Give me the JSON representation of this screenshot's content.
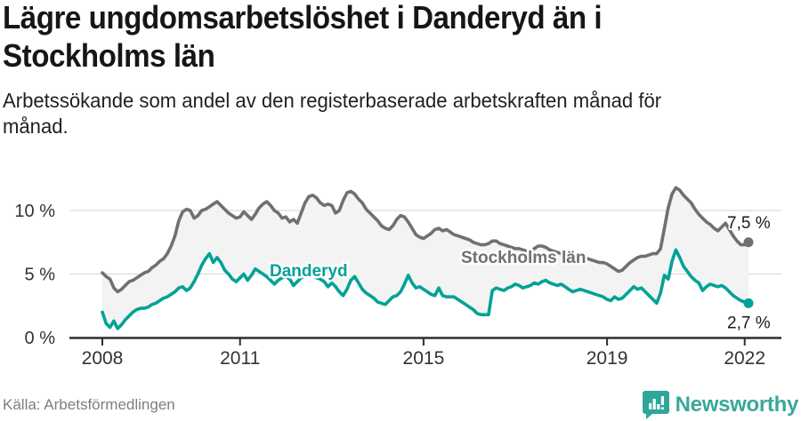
{
  "header": {
    "title": "Lägre ungdomsarbetslöshet i Danderyd än i\nStockholms län",
    "subtitle": "Arbetssökande som andel av den registerbaserade arbetskraften månad för\nmånad."
  },
  "footer": {
    "source": "Källa: Arbetsförmedlingen",
    "brand": "Newsworthy"
  },
  "colors": {
    "stockholm_line": "#6f6f75",
    "danderyd_line": "#00a296",
    "band_fill": "#f3f3f3",
    "gridline": "#dbdbdb",
    "axis": "#2e2e2e",
    "logo_teal": "#2ea79a"
  },
  "chart_data": {
    "type": "line",
    "title": "Lägre ungdomsarbetslöshet i Danderyd än i Stockholms län",
    "subtitle": "Arbetssökande som andel av den registerbaserade arbetskraften månad för månad.",
    "unit": "%",
    "x_range": [
      2008.0,
      2022.08
    ],
    "ylim": [
      0,
      12.5
    ],
    "grid": true,
    "legend_position": "inline-labels",
    "x_frequency": "monthly",
    "yticks": [
      {
        "value": 0,
        "label": "0 %"
      },
      {
        "value": 5,
        "label": "5 %"
      },
      {
        "value": 10,
        "label": "10 %"
      }
    ],
    "xticks": [
      {
        "value": 2008,
        "label": "2008"
      },
      {
        "value": 2011,
        "label": "2011"
      },
      {
        "value": 2015,
        "label": "2015"
      },
      {
        "value": 2019,
        "label": "2019"
      },
      {
        "value": 2022,
        "label": "2022"
      }
    ],
    "series": [
      {
        "name": "Stockholms län",
        "color": "#6f6f75",
        "end_label": "7,5 %",
        "end_value": 7.5,
        "values": [
          5.1,
          4.8,
          4.6,
          3.9,
          3.6,
          3.8,
          4.1,
          4.4,
          4.5,
          4.7,
          4.9,
          5.1,
          5.2,
          5.5,
          5.7,
          6.0,
          6.2,
          6.6,
          7.2,
          8.0,
          9.2,
          9.9,
          10.1,
          10.0,
          9.4,
          9.6,
          10.0,
          10.1,
          10.3,
          10.5,
          10.7,
          10.4,
          10.1,
          9.8,
          9.6,
          9.4,
          9.5,
          9.9,
          9.6,
          9.3,
          9.7,
          10.2,
          10.5,
          10.7,
          10.4,
          10.0,
          9.8,
          9.4,
          9.5,
          9.1,
          9.3,
          9.0,
          9.8,
          10.6,
          11.1,
          11.2,
          11.0,
          10.6,
          10.4,
          10.5,
          10.4,
          9.8,
          10.0,
          10.8,
          11.4,
          11.5,
          11.3,
          10.9,
          10.6,
          10.1,
          9.8,
          9.5,
          9.2,
          8.8,
          8.6,
          8.5,
          8.8,
          9.3,
          9.6,
          9.5,
          9.1,
          8.6,
          8.1,
          7.9,
          7.8,
          8.0,
          8.2,
          8.5,
          8.6,
          8.4,
          8.5,
          8.3,
          8.1,
          8.0,
          7.9,
          7.8,
          7.7,
          7.5,
          7.4,
          7.3,
          7.3,
          7.4,
          7.6,
          7.6,
          7.4,
          7.3,
          7.2,
          7.1,
          7.0,
          7.0,
          6.9,
          6.8,
          6.8,
          7.0,
          7.2,
          7.2,
          7.1,
          6.9,
          6.8,
          6.7,
          6.6,
          6.5,
          6.4,
          6.3,
          6.2,
          6.2,
          6.3,
          6.2,
          6.1,
          6.0,
          5.9,
          5.9,
          5.8,
          5.6,
          5.4,
          5.2,
          5.3,
          5.6,
          5.9,
          6.1,
          6.3,
          6.4,
          6.4,
          6.5,
          6.6,
          6.6,
          7.0,
          8.6,
          10.2,
          11.3,
          11.8,
          11.6,
          11.2,
          10.9,
          10.6,
          10.1,
          9.7,
          9.4,
          9.1,
          8.9,
          8.6,
          8.4,
          8.7,
          9.0,
          8.5,
          8.0,
          7.6,
          7.3,
          7.3,
          7.5
        ]
      },
      {
        "name": "Danderyd",
        "color": "#00a296",
        "end_label": "2,7 %",
        "end_value": 2.7,
        "values": [
          2.0,
          1.1,
          0.8,
          1.3,
          0.7,
          1.0,
          1.4,
          1.7,
          2.0,
          2.2,
          2.3,
          2.3,
          2.4,
          2.6,
          2.7,
          2.9,
          3.1,
          3.2,
          3.4,
          3.6,
          3.9,
          4.0,
          3.7,
          3.9,
          4.4,
          5.0,
          5.7,
          6.2,
          6.6,
          5.9,
          6.3,
          5.9,
          5.3,
          5.0,
          4.6,
          4.4,
          4.7,
          5.0,
          4.5,
          4.9,
          5.4,
          5.2,
          5.0,
          4.8,
          4.5,
          4.2,
          4.5,
          4.7,
          4.8,
          4.6,
          4.1,
          4.4,
          4.7,
          4.9,
          5.0,
          4.9,
          4.7,
          4.6,
          4.4,
          4.0,
          4.3,
          4.0,
          3.6,
          3.3,
          3.8,
          4.5,
          4.8,
          4.3,
          3.8,
          3.5,
          3.3,
          3.1,
          2.8,
          2.7,
          2.6,
          2.9,
          3.2,
          3.3,
          3.6,
          4.2,
          4.9,
          4.3,
          3.9,
          4.0,
          3.8,
          3.6,
          3.4,
          3.3,
          3.9,
          3.3,
          3.2,
          3.2,
          3.2,
          3.0,
          2.8,
          2.6,
          2.4,
          2.2,
          1.9,
          1.8,
          1.8,
          1.8,
          3.7,
          3.9,
          3.8,
          3.7,
          3.9,
          4.0,
          4.2,
          4.1,
          3.9,
          4.0,
          4.1,
          4.3,
          4.2,
          4.4,
          4.5,
          4.3,
          4.2,
          4.1,
          4.2,
          4.0,
          3.8,
          3.6,
          3.7,
          3.8,
          3.7,
          3.6,
          3.5,
          3.4,
          3.3,
          3.2,
          3.0,
          2.9,
          3.2,
          3.0,
          3.1,
          3.4,
          3.7,
          4.0,
          3.8,
          3.9,
          3.6,
          3.3,
          3.0,
          2.7,
          3.5,
          4.9,
          4.6,
          6.0,
          6.9,
          6.3,
          5.6,
          5.2,
          4.8,
          4.5,
          4.3,
          3.7,
          4.0,
          4.2,
          4.1,
          4.0,
          4.1,
          3.9,
          3.6,
          3.3,
          3.1,
          2.9,
          2.8,
          2.7
        ]
      }
    ]
  }
}
